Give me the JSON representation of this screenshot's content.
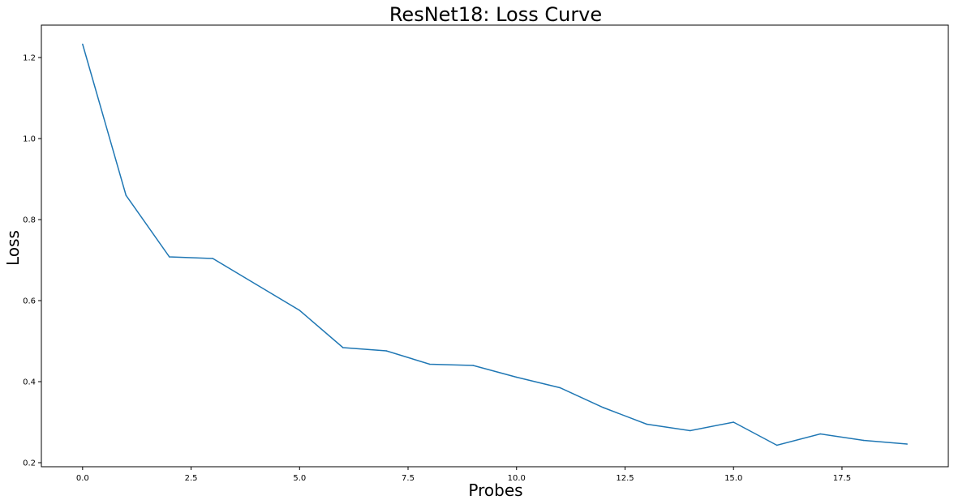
{
  "chart_data": {
    "type": "line",
    "title": "ResNet18: Loss Curve",
    "xlabel": "Probes",
    "ylabel": "Loss",
    "xlim": [
      -0.95,
      19.95
    ],
    "ylim": [
      0.19,
      1.28
    ],
    "grid": false,
    "x_ticks": [
      0.0,
      2.5,
      5.0,
      7.5,
      10.0,
      12.5,
      15.0,
      17.5
    ],
    "x_tick_labels": [
      "0.0",
      "2.5",
      "5.0",
      "7.5",
      "10.0",
      "12.5",
      "15.0",
      "17.5"
    ],
    "y_ticks": [
      0.2,
      0.4,
      0.6,
      0.8,
      1.0,
      1.2
    ],
    "y_tick_labels": [
      "0.2",
      "0.4",
      "0.6",
      "0.8",
      "1.0",
      "1.2"
    ],
    "x": [
      0,
      1,
      2,
      3,
      4,
      5,
      6,
      7,
      8,
      9,
      10,
      11,
      12,
      13,
      14,
      15,
      16,
      17,
      18,
      19
    ],
    "series": [
      {
        "color": "#1f77b4",
        "values": [
          1.233,
          0.86,
          0.708,
          0.704,
          0.64,
          0.576,
          0.484,
          0.476,
          0.443,
          0.44,
          0.411,
          0.385,
          0.336,
          0.295,
          0.279,
          0.3,
          0.243,
          0.271,
          0.255,
          0.246
        ]
      }
    ]
  }
}
